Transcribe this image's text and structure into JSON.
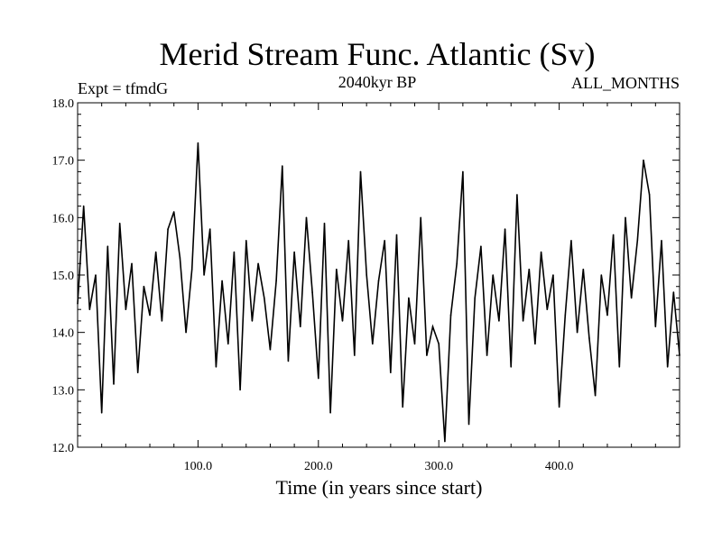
{
  "chart_data": {
    "type": "line",
    "title": "Merid Stream Func. Atlantic (Sv)",
    "subtitle_left": "Expt = tfmdG",
    "subtitle_center": "2040kyr BP",
    "subtitle_right": "ALL_MONTHS",
    "xlabel": "Time (in years since start)",
    "ylabel": "",
    "xlim": [
      0,
      500
    ],
    "ylim": [
      12.0,
      18.0
    ],
    "x_ticks": [
      100,
      200,
      300,
      400
    ],
    "x_tick_labels": [
      "100.0",
      "200.0",
      "300.0",
      "400.0"
    ],
    "y_ticks": [
      12,
      13,
      14,
      15,
      16,
      17,
      18
    ],
    "y_tick_labels": [
      "12.0",
      "13.0",
      "14.0",
      "15.0",
      "16.0",
      "17.0",
      "18.0"
    ],
    "grid": false,
    "line_color": "#000000",
    "series": [
      {
        "name": "Merid Stream Func. Atlantic",
        "x": [
          0,
          5,
          10,
          15,
          20,
          25,
          30,
          35,
          40,
          45,
          50,
          55,
          60,
          65,
          70,
          75,
          80,
          85,
          90,
          95,
          100,
          105,
          110,
          115,
          120,
          125,
          130,
          135,
          140,
          145,
          150,
          155,
          160,
          165,
          170,
          175,
          180,
          185,
          190,
          195,
          200,
          205,
          210,
          215,
          220,
          225,
          230,
          235,
          240,
          245,
          250,
          255,
          260,
          265,
          270,
          275,
          280,
          285,
          290,
          295,
          300,
          305,
          310,
          315,
          320,
          325,
          330,
          335,
          340,
          345,
          350,
          355,
          360,
          365,
          370,
          375,
          380,
          385,
          390,
          395,
          400,
          405,
          410,
          415,
          420,
          425,
          430,
          435,
          440,
          445,
          450,
          455,
          460,
          465,
          470,
          475,
          480,
          485,
          490,
          495,
          500
        ],
        "values": [
          14.5,
          16.2,
          14.4,
          15.0,
          12.6,
          15.5,
          13.1,
          15.9,
          14.4,
          15.2,
          13.3,
          14.8,
          14.3,
          15.4,
          14.2,
          15.8,
          16.1,
          15.3,
          14.0,
          15.1,
          17.3,
          15.0,
          15.8,
          13.4,
          14.9,
          13.8,
          15.4,
          13.0,
          15.6,
          14.2,
          15.2,
          14.6,
          13.7,
          14.9,
          16.9,
          13.5,
          15.4,
          14.1,
          16.0,
          14.7,
          13.2,
          15.9,
          12.6,
          15.1,
          14.2,
          15.6,
          13.6,
          16.8,
          15.0,
          13.8,
          14.9,
          15.6,
          13.3,
          15.7,
          12.7,
          14.6,
          13.8,
          16.0,
          13.6,
          14.1,
          13.8,
          12.1,
          14.3,
          15.2,
          16.8,
          12.4,
          14.6,
          15.5,
          13.6,
          15.0,
          14.2,
          15.8,
          13.4,
          16.4,
          14.2,
          15.1,
          13.8,
          15.4,
          14.4,
          15.0,
          12.7,
          14.3,
          15.6,
          14.0,
          15.1,
          13.9,
          12.9,
          15.0,
          14.3,
          15.7,
          13.4,
          16.0,
          14.6,
          15.6,
          17.0,
          16.4,
          14.1,
          15.6,
          13.4,
          14.7,
          13.6
        ]
      }
    ]
  }
}
